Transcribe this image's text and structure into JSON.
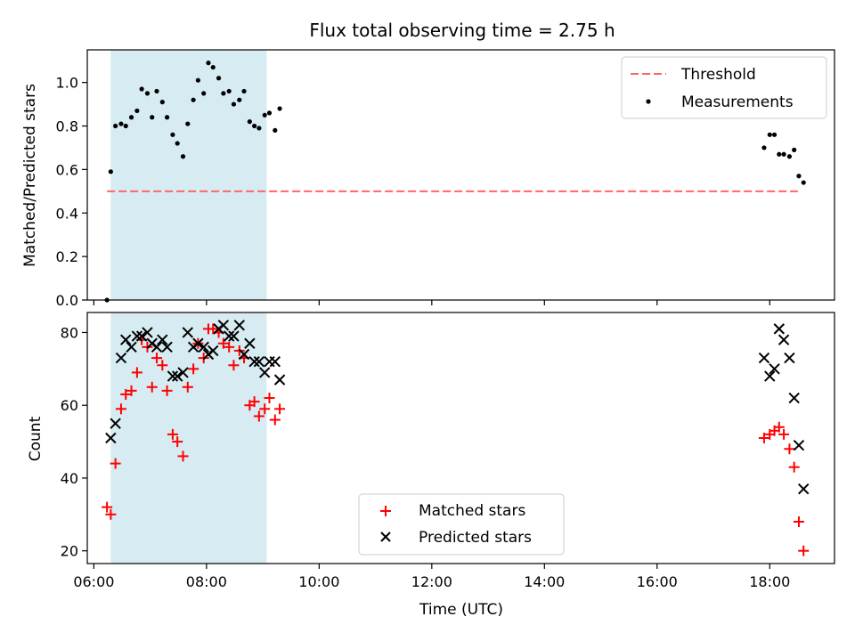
{
  "chart_data": [
    {
      "type": "scatter",
      "title": "Flux total observing time = 2.75 h",
      "xlabel": "",
      "ylabel": "Matched/Predicted stars",
      "ylim": [
        0,
        1.15
      ],
      "yticks": [
        "0.0",
        "0.2",
        "0.4",
        "0.6",
        "0.8",
        "1.0"
      ],
      "xlim": [
        "05:53",
        "19:09"
      ],
      "shaded_interval": {
        "from": "06:18",
        "to": "09:04",
        "color": "#add8e6"
      },
      "legend_position": "top-right",
      "threshold": {
        "name": "Threshold",
        "y": 0.5,
        "from": "06:14",
        "to": "18:30",
        "color": "#ff6666",
        "style": "dashed"
      },
      "series": [
        {
          "name": "Measurements",
          "color": "#000000",
          "marker": "dot",
          "points": [
            [
              "06:14",
              0.0
            ],
            [
              "06:18",
              0.59
            ],
            [
              "06:23",
              0.8
            ],
            [
              "06:29",
              0.81
            ],
            [
              "06:34",
              0.8
            ],
            [
              "06:40",
              0.84
            ],
            [
              "06:46",
              0.87
            ],
            [
              "06:51",
              0.97
            ],
            [
              "06:57",
              0.95
            ],
            [
              "07:02",
              0.84
            ],
            [
              "07:07",
              0.96
            ],
            [
              "07:13",
              0.91
            ],
            [
              "07:18",
              0.84
            ],
            [
              "07:24",
              0.76
            ],
            [
              "07:29",
              0.72
            ],
            [
              "07:35",
              0.66
            ],
            [
              "07:40",
              0.81
            ],
            [
              "07:46",
              0.92
            ],
            [
              "07:51",
              1.01
            ],
            [
              "07:57",
              0.95
            ],
            [
              "08:02",
              1.09
            ],
            [
              "08:07",
              1.07
            ],
            [
              "08:13",
              1.02
            ],
            [
              "08:18",
              0.95
            ],
            [
              "08:24",
              0.96
            ],
            [
              "08:29",
              0.9
            ],
            [
              "08:35",
              0.92
            ],
            [
              "08:40",
              0.96
            ],
            [
              "08:46",
              0.82
            ],
            [
              "08:51",
              0.8
            ],
            [
              "08:56",
              0.79
            ],
            [
              "09:02",
              0.85
            ],
            [
              "09:07",
              0.86
            ],
            [
              "09:13",
              0.78
            ],
            [
              "09:18",
              0.88
            ],
            [
              "17:54",
              0.7
            ],
            [
              "18:00",
              0.76
            ],
            [
              "18:05",
              0.76
            ],
            [
              "18:10",
              0.67
            ],
            [
              "18:15",
              0.67
            ],
            [
              "18:21",
              0.66
            ],
            [
              "18:26",
              0.69
            ],
            [
              "18:31",
              0.57
            ],
            [
              "18:36",
              0.54
            ]
          ]
        }
      ]
    },
    {
      "type": "scatter",
      "title": "",
      "xlabel": "Time (UTC)",
      "ylabel": "Count",
      "ylim": [
        16.5,
        85.5
      ],
      "yticks": [
        "20",
        "40",
        "60",
        "80"
      ],
      "xlim": [
        "05:53",
        "19:09"
      ],
      "xticks": [
        "06:00",
        "08:00",
        "10:00",
        "12:00",
        "14:00",
        "16:00",
        "18:00"
      ],
      "shaded_interval": {
        "from": "06:18",
        "to": "09:04",
        "color": "#add8e6"
      },
      "legend_position": "lower-center",
      "series": [
        {
          "name": "Matched stars",
          "color": "#ff0000",
          "marker": "plus",
          "points": [
            [
              "06:14",
              32
            ],
            [
              "06:18",
              30
            ],
            [
              "06:23",
              44
            ],
            [
              "06:29",
              59
            ],
            [
              "06:34",
              63
            ],
            [
              "06:40",
              64
            ],
            [
              "06:46",
              69
            ],
            [
              "06:51",
              78
            ],
            [
              "06:57",
              76
            ],
            [
              "07:02",
              65
            ],
            [
              "07:07",
              73
            ],
            [
              "07:13",
              71
            ],
            [
              "07:18",
              64
            ],
            [
              "07:24",
              52
            ],
            [
              "07:29",
              50
            ],
            [
              "07:35",
              46
            ],
            [
              "07:40",
              65
            ],
            [
              "07:46",
              70
            ],
            [
              "07:51",
              77
            ],
            [
              "07:57",
              73
            ],
            [
              "08:02",
              81
            ],
            [
              "08:07",
              81
            ],
            [
              "08:13",
              80
            ],
            [
              "08:18",
              77
            ],
            [
              "08:24",
              76
            ],
            [
              "08:29",
              71
            ],
            [
              "08:35",
              75
            ],
            [
              "08:40",
              73
            ],
            [
              "08:46",
              60
            ],
            [
              "08:51",
              61
            ],
            [
              "08:56",
              57
            ],
            [
              "09:02",
              59
            ],
            [
              "09:07",
              62
            ],
            [
              "09:13",
              56
            ],
            [
              "09:18",
              59
            ],
            [
              "17:54",
              51
            ],
            [
              "18:00",
              52
            ],
            [
              "18:05",
              53
            ],
            [
              "18:10",
              54
            ],
            [
              "18:15",
              52
            ],
            [
              "18:21",
              48
            ],
            [
              "18:26",
              43
            ],
            [
              "18:31",
              28
            ],
            [
              "18:36",
              20
            ]
          ]
        },
        {
          "name": "Predicted stars",
          "color": "#000000",
          "marker": "x",
          "points": [
            [
              "06:18",
              51
            ],
            [
              "06:23",
              55
            ],
            [
              "06:29",
              73
            ],
            [
              "06:34",
              78
            ],
            [
              "06:40",
              76
            ],
            [
              "06:46",
              79
            ],
            [
              "06:51",
              79
            ],
            [
              "06:57",
              80
            ],
            [
              "07:02",
              77
            ],
            [
              "07:07",
              76
            ],
            [
              "07:13",
              78
            ],
            [
              "07:18",
              76
            ],
            [
              "07:24",
              68
            ],
            [
              "07:29",
              68
            ],
            [
              "07:35",
              69
            ],
            [
              "07:40",
              80
            ],
            [
              "07:46",
              76
            ],
            [
              "07:51",
              77
            ],
            [
              "07:57",
              76
            ],
            [
              "08:02",
              74
            ],
            [
              "08:07",
              75
            ],
            [
              "08:13",
              81
            ],
            [
              "08:18",
              82
            ],
            [
              "08:24",
              79
            ],
            [
              "08:29",
              79
            ],
            [
              "08:35",
              82
            ],
            [
              "08:40",
              74
            ],
            [
              "08:46",
              77
            ],
            [
              "08:51",
              72
            ],
            [
              "08:56",
              72
            ],
            [
              "09:02",
              69
            ],
            [
              "09:07",
              72
            ],
            [
              "09:13",
              72
            ],
            [
              "09:18",
              67
            ],
            [
              "17:54",
              73
            ],
            [
              "18:00",
              68
            ],
            [
              "18:05",
              70
            ],
            [
              "18:10",
              81
            ],
            [
              "18:15",
              78
            ],
            [
              "18:21",
              73
            ],
            [
              "18:26",
              62
            ],
            [
              "18:31",
              49
            ],
            [
              "18:36",
              37
            ]
          ]
        }
      ]
    }
  ]
}
